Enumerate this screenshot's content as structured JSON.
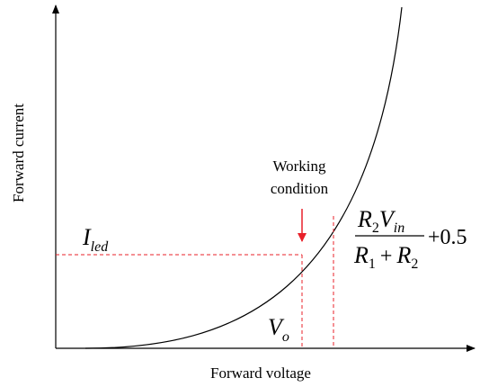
{
  "axes": {
    "x_label": "Forward voltage",
    "y_label": "Forward current"
  },
  "annotations": {
    "working_condition": [
      "Working",
      "condition"
    ],
    "current": {
      "base": "I",
      "sub": "led"
    },
    "voltage": {
      "base": "V",
      "sub": "o"
    },
    "formula": {
      "numerator": [
        {
          "base": "R",
          "sub": "2"
        },
        {
          "base": "V",
          "sub": "in"
        }
      ],
      "denominator": [
        {
          "base": "R",
          "sub": "1"
        },
        {
          "op": "+"
        },
        {
          "base": "R",
          "sub": "2"
        }
      ],
      "tail": "+0.5"
    }
  }
}
